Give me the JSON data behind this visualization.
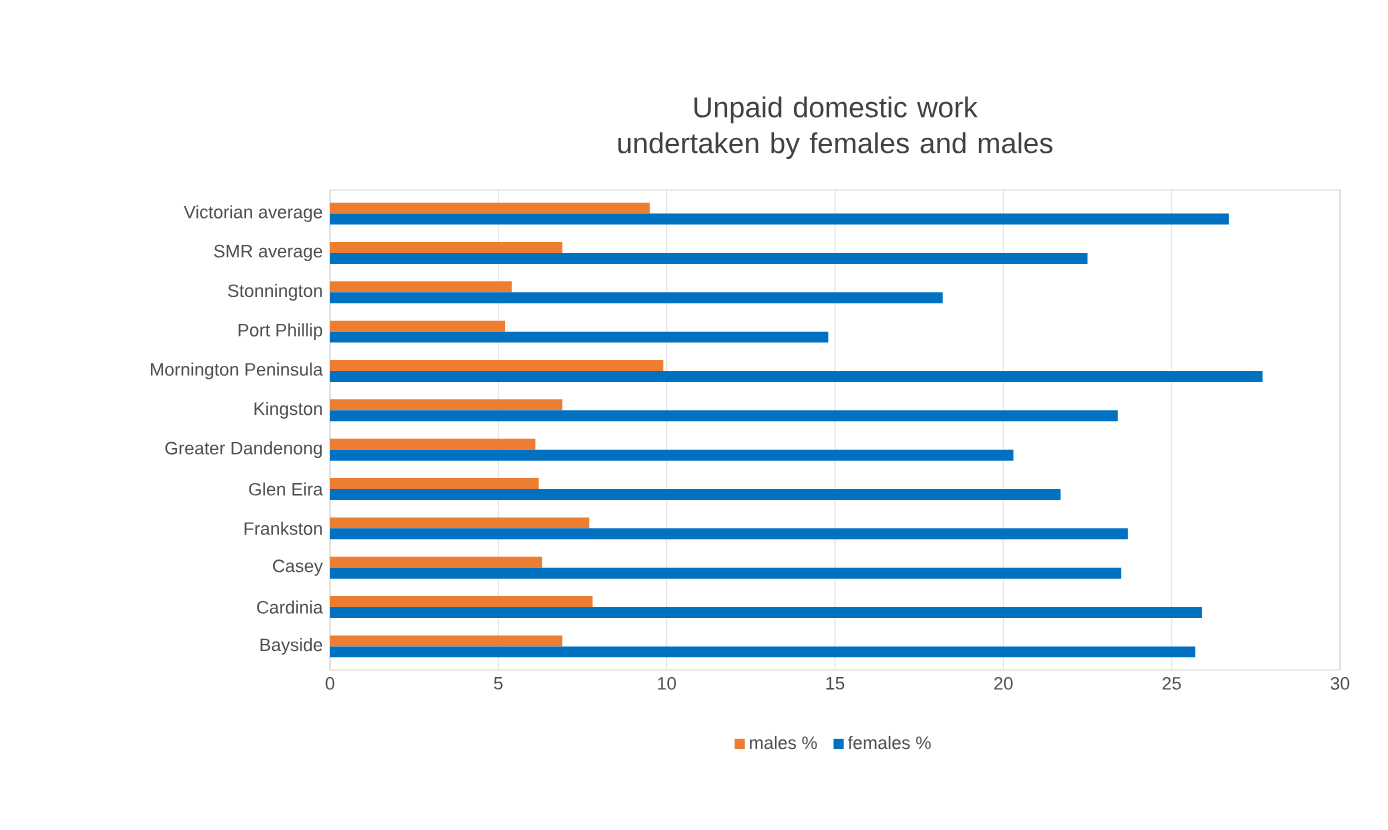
{
  "chart_data": {
    "type": "bar",
    "orientation": "horizontal",
    "title": "Unpaid domestic work undertaken by females and males",
    "categories": [
      "Victorian average",
      "SMR average",
      "Stonnington",
      "Port Phillip",
      "Mornington Peninsula",
      "Kingston",
      "Greater Dandenong",
      "Glen Eira",
      "Frankston",
      "Casey",
      "Cardinia",
      "Bayside"
    ],
    "series": [
      {
        "name": "males %",
        "color": "#ed7d31",
        "values": [
          9.5,
          6.9,
          5.4,
          5.2,
          9.9,
          6.9,
          6.1,
          6.2,
          7.7,
          6.3,
          7.8,
          6.9
        ]
      },
      {
        "name": "females %",
        "color": "#0070c0",
        "values": [
          26.7,
          22.5,
          18.2,
          14.8,
          27.7,
          23.4,
          20.3,
          21.7,
          23.7,
          23.5,
          25.9,
          25.7
        ]
      }
    ],
    "xlim": [
      0,
      30
    ],
    "xticks": [
      0,
      5,
      10,
      15,
      20,
      25,
      30
    ],
    "grid": "x",
    "legend": "bottom"
  }
}
